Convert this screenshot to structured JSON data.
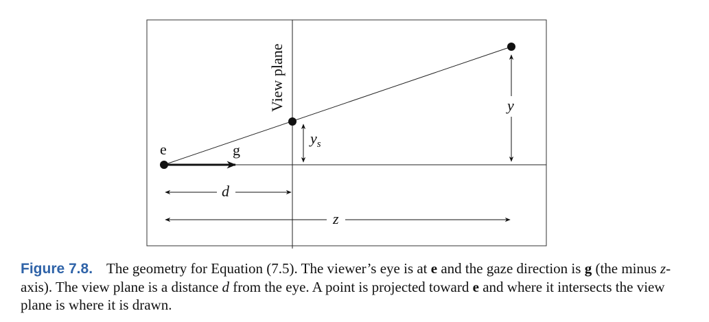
{
  "diagram": {
    "labels": {
      "eye": "e",
      "gaze": "g",
      "view_plane": "View plane",
      "y": "y",
      "ys": "y",
      "ys_sub": "s",
      "d": "d",
      "z": "z"
    },
    "colors": {
      "ink": "#111111",
      "frame": "#333333"
    }
  },
  "caption": {
    "label": "Figure 7.8.",
    "t1": "The geometry for Equation (7.5). The viewer’s eye is at ",
    "e1": "e",
    "t2": " and the gaze direction is ",
    "g1": "g",
    "t3": " (the minus ",
    "z1": "z",
    "t4": "-axis). The view plane is a distance ",
    "d1": "d",
    "t5": " from the eye. A point is projected toward ",
    "e2": "e",
    "t6": " and where it intersects the view plane is where it is drawn.",
    "label_color": "#2f63a8"
  }
}
